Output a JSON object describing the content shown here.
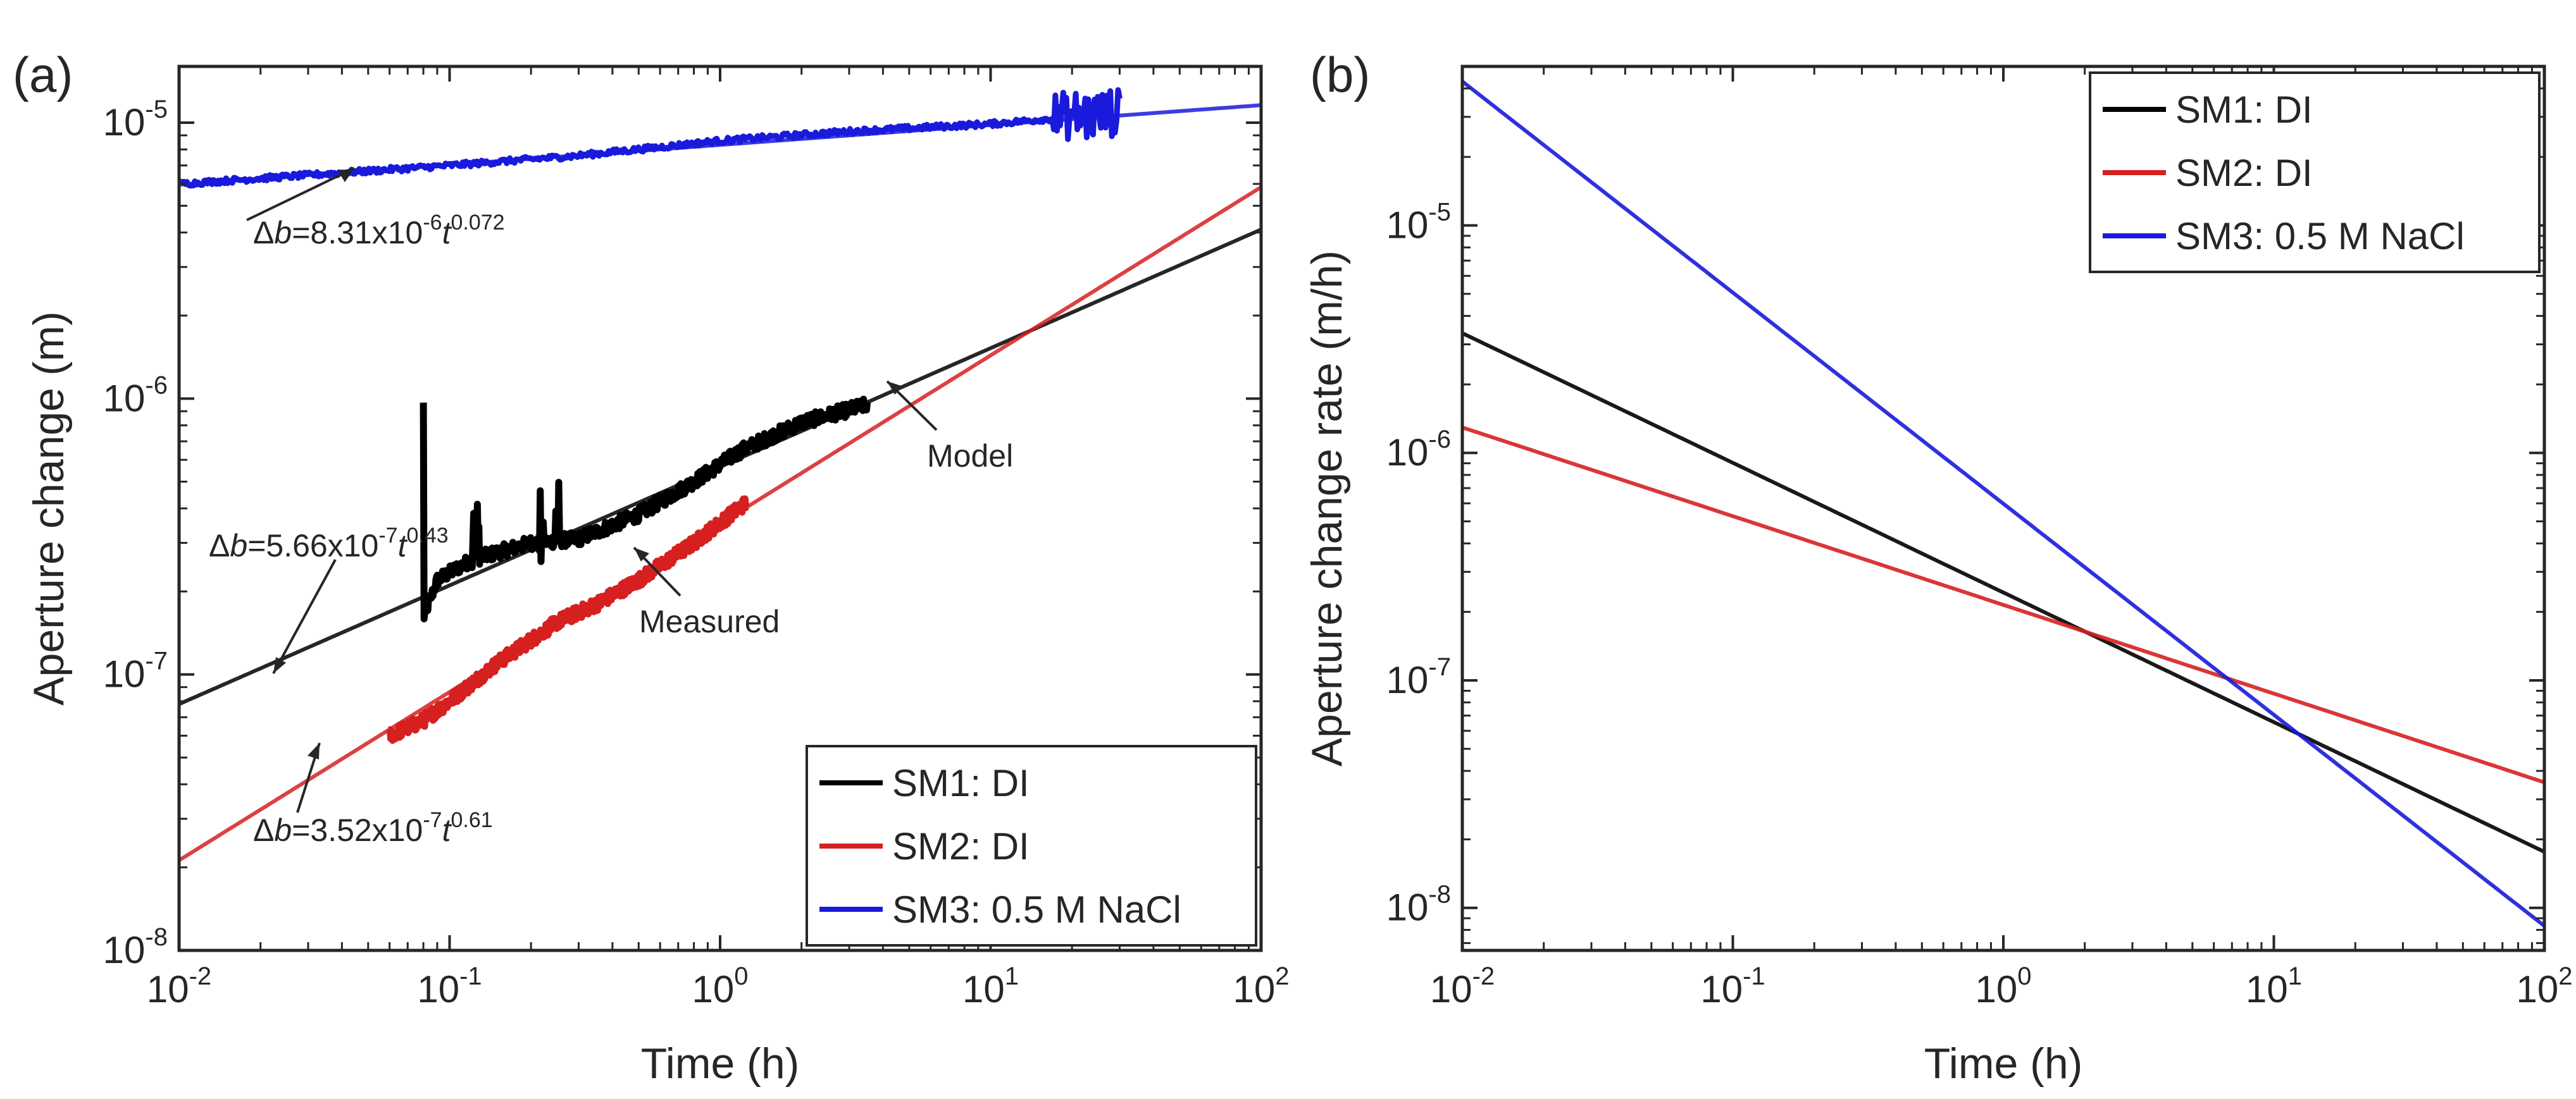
{
  "chart_data": [
    {
      "panel_label": "(a)",
      "type": "line",
      "xscale": "log",
      "yscale": "log",
      "xlim": [
        0.01,
        100
      ],
      "ylim": [
        1e-08,
        1.6e-05
      ],
      "xlabel": "Time (h)",
      "ylabel": "Aperture change  (m)",
      "x_ticks": [
        {
          "value": 0.01,
          "base": "10",
          "exp": "-2"
        },
        {
          "value": 0.1,
          "base": "10",
          "exp": "-1"
        },
        {
          "value": 1,
          "base": "10",
          "exp": "0"
        },
        {
          "value": 10,
          "base": "10",
          "exp": "1"
        },
        {
          "value": 100,
          "base": "10",
          "exp": "2"
        }
      ],
      "y_ticks": [
        {
          "value": 1e-08,
          "base": "10",
          "exp": "-8"
        },
        {
          "value": 1e-07,
          "base": "10",
          "exp": "-7"
        },
        {
          "value": 1e-06,
          "base": "10",
          "exp": "-6"
        },
        {
          "value": 1e-05,
          "base": "10",
          "exp": "-5"
        }
      ],
      "legend_position": "bottom-right",
      "series": [
        {
          "name": "SM1: DI",
          "color": "#000000",
          "model_coeff": 5.66e-07,
          "model_exp": 0.43,
          "measured_range": [
            0.08,
            3.5
          ],
          "measured_points": [
            [
              0.08,
              1.6e-07
            ],
            [
              0.09,
              2.2e-07
            ],
            [
              0.12,
              2.6e-07
            ],
            [
              0.2,
              3e-07
            ],
            [
              0.3,
              3.1e-07
            ],
            [
              0.5,
              3.8e-07
            ],
            [
              0.8,
              5e-07
            ],
            [
              1.2,
              6.5e-07
            ],
            [
              2.0,
              8.2e-07
            ],
            [
              3.5,
              9.5e-07
            ]
          ]
        },
        {
          "name": "SM2: DI",
          "color": "#d62020",
          "model_coeff": 3.52e-07,
          "model_exp": 0.61,
          "measured_range": [
            0.06,
            1.25
          ],
          "measured_points": [
            [
              0.06,
              6e-08
            ],
            [
              0.08,
              6.8e-08
            ],
            [
              0.1,
              8e-08
            ],
            [
              0.15,
              1.1e-07
            ],
            [
              0.25,
              1.55e-07
            ],
            [
              0.35,
              1.8e-07
            ],
            [
              0.5,
              2.2e-07
            ],
            [
              0.8,
              3e-07
            ],
            [
              1.25,
              4.2e-07
            ]
          ]
        },
        {
          "name": "SM3: 0.5 M NaCl",
          "color": "#1a1adc",
          "model_coeff": 8.31e-06,
          "model_exp": 0.072,
          "measured_range": [
            0.01,
            30
          ],
          "measured_points": [
            [
              0.01,
              6e-06
            ],
            [
              0.1,
              7e-06
            ],
            [
              0.3,
              7.6e-06
            ],
            [
              1,
              8.6e-06
            ],
            [
              3,
              9.3e-06
            ],
            [
              10,
              9.9e-06
            ],
            [
              20,
              1.05e-05
            ],
            [
              30,
              1.08e-05
            ]
          ]
        }
      ],
      "annotations": [
        {
          "id": "sm3-eq",
          "prefix": "Δ",
          "var": "b",
          "mid": "=8.31x10",
          "sup1": "-6",
          "t": "t",
          "sup2": "0.072"
        },
        {
          "id": "sm1-eq",
          "prefix": "Δ",
          "var": "b",
          "mid": "=5.66x10",
          "sup1": "-7",
          "t": "t",
          "sup2": "0.43"
        },
        {
          "id": "sm2-eq",
          "prefix": "Δ",
          "var": "b",
          "mid": "=3.52x10",
          "sup1": "-7",
          "t": "t",
          "sup2": "0.61"
        },
        {
          "id": "model",
          "text": "Model"
        },
        {
          "id": "measured",
          "text": "Measured"
        }
      ]
    },
    {
      "panel_label": "(b)",
      "type": "line",
      "xscale": "log",
      "yscale": "log",
      "xlim": [
        0.01,
        100
      ],
      "ylim": [
        6.5e-09,
        5e-05
      ],
      "xlabel": "Time (h)",
      "ylabel": "Aperture change rate  (m/h)",
      "x_ticks": [
        {
          "value": 0.01,
          "base": "10",
          "exp": "-2"
        },
        {
          "value": 0.1,
          "base": "10",
          "exp": "-1"
        },
        {
          "value": 1,
          "base": "10",
          "exp": "0"
        },
        {
          "value": 10,
          "base": "10",
          "exp": "1"
        },
        {
          "value": 100,
          "base": "10",
          "exp": "2"
        }
      ],
      "y_ticks": [
        {
          "value": 1e-08,
          "base": "10",
          "exp": "-8"
        },
        {
          "value": 1e-07,
          "base": "10",
          "exp": "-7"
        },
        {
          "value": 1e-06,
          "base": "10",
          "exp": "-6"
        },
        {
          "value": 1e-05,
          "base": "10",
          "exp": "-5"
        }
      ],
      "legend_position": "top-right",
      "series": [
        {
          "name": "SM1: DI",
          "color": "#000000",
          "coeff": 2.434e-07,
          "exp": -0.57
        },
        {
          "name": "SM2: DI",
          "color": "#d62020",
          "coeff": 2.147e-07,
          "exp": -0.39
        },
        {
          "name": "SM3: 0.5 M NaCl",
          "color": "#1a1adc",
          "coeff": 5.98e-07,
          "exp": -0.928
        }
      ]
    }
  ]
}
